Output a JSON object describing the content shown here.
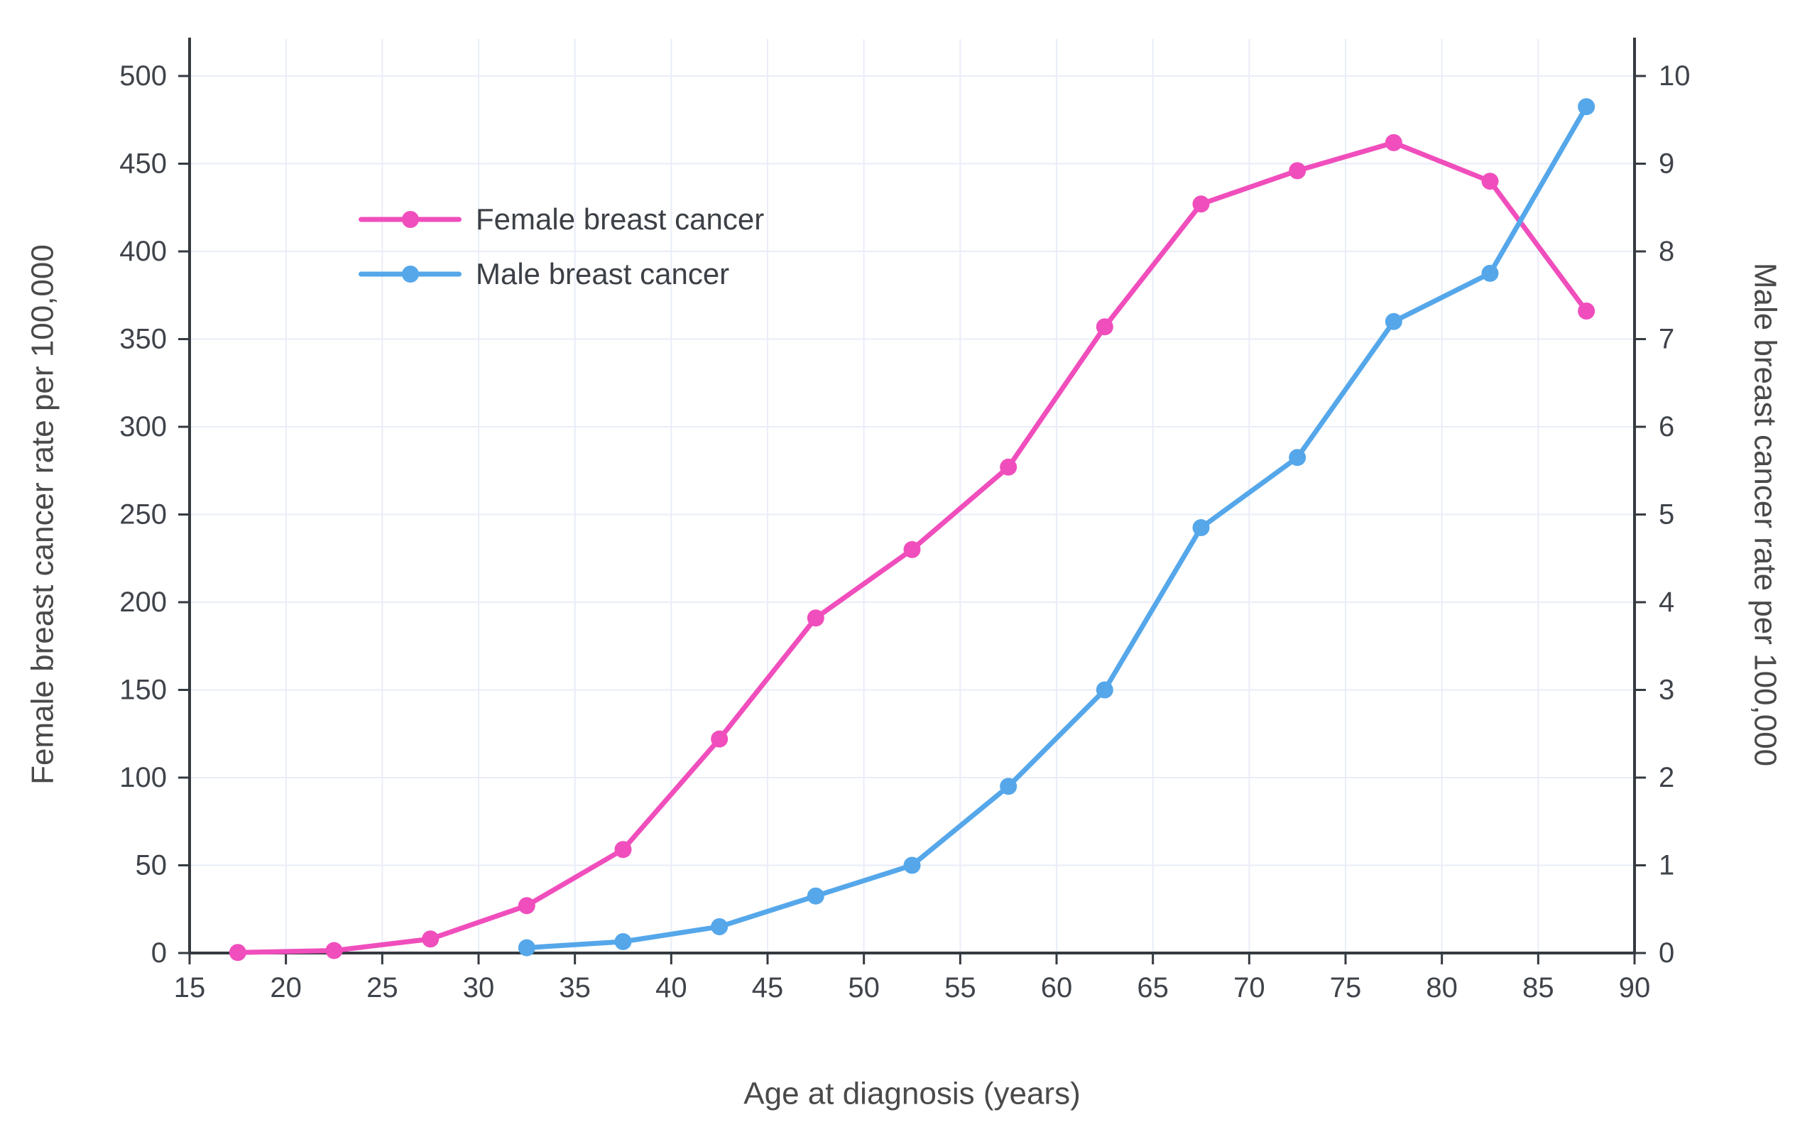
{
  "chart_data": {
    "type": "line",
    "title": "",
    "xlabel": "Age at diagnosis (years)",
    "ylabel_left": "Female breast cancer rate per 100,000",
    "ylabel_right": "Male breast cancer rate per 100,000",
    "x_range": [
      15,
      90
    ],
    "x_ticks": [
      15,
      20,
      25,
      30,
      35,
      40,
      45,
      50,
      55,
      60,
      65,
      70,
      75,
      80,
      85,
      90
    ],
    "y_left_range": [
      0,
      500
    ],
    "y_left_ticks": [
      0,
      50,
      100,
      150,
      200,
      250,
      300,
      350,
      400,
      450,
      500
    ],
    "y_right_range": [
      0,
      10
    ],
    "y_right_ticks": [
      0,
      1,
      2,
      3,
      4,
      5,
      6,
      7,
      8,
      9,
      10
    ],
    "grid": true,
    "legend_position": "inside-upper-left",
    "colors": {
      "female": "#f04ebc",
      "male": "#55a7ea",
      "grid": "#e9edf8",
      "axis": "#343a40",
      "tick_text": "#3f434a",
      "title_text": "#4a4a4a"
    },
    "series": [
      {
        "name": "Female breast cancer",
        "color": "#f04ebc",
        "axis": "left",
        "x": [
          17.5,
          22.5,
          27.5,
          32.5,
          37.5,
          42.5,
          47.5,
          52.5,
          57.5,
          62.5,
          67.5,
          72.5,
          77.5,
          82.5,
          87.5
        ],
        "values": [
          0.3,
          1.4,
          8,
          27,
          59,
          122,
          191,
          230,
          277,
          357,
          427,
          446,
          462,
          440,
          366
        ]
      },
      {
        "name": "Male breast cancer",
        "color": "#55a7ea",
        "axis": "right",
        "x": [
          32.5,
          37.5,
          42.5,
          47.5,
          52.5,
          57.5,
          62.5,
          67.5,
          72.5,
          77.5,
          82.5,
          87.5
        ],
        "values": [
          0.06,
          0.13,
          0.3,
          0.65,
          1.0,
          1.9,
          3.0,
          4.85,
          5.65,
          7.2,
          7.75,
          9.65
        ]
      }
    ]
  }
}
